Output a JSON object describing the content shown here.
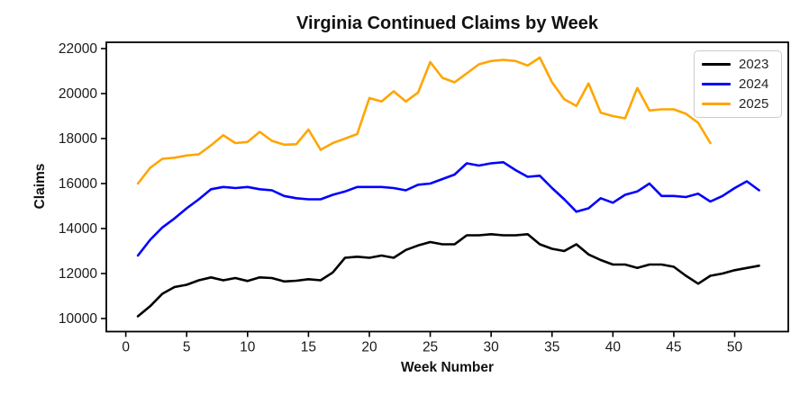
{
  "chart_data": {
    "type": "line",
    "title": "Virginia Continued Claims by Week",
    "xlabel": "Week Number",
    "ylabel": "Claims",
    "grid": false,
    "legend_position": "upper right",
    "xlim": [
      -1.6,
      54.4
    ],
    "ylim": [
      9420,
      22280
    ],
    "xticks": [
      0,
      5,
      10,
      15,
      20,
      25,
      30,
      35,
      40,
      45,
      50
    ],
    "yticks": [
      10000,
      12000,
      14000,
      16000,
      18000,
      20000,
      22000
    ],
    "x_unit": "week_number_starting_at_1",
    "text_color": "#1a1a1a",
    "spine_color": "#000000",
    "series": [
      {
        "name": "2023",
        "color": "#000000",
        "values": [
          10100,
          10550,
          11100,
          11400,
          11500,
          11700,
          11830,
          11700,
          11800,
          11670,
          11830,
          11800,
          11650,
          11680,
          11750,
          11700,
          12050,
          12700,
          12750,
          12700,
          12800,
          12700,
          13050,
          13250,
          13400,
          13300,
          13300,
          13700,
          13700,
          13750,
          13700,
          13700,
          13750,
          13300,
          13100,
          13000,
          13300,
          12850,
          12600,
          12400,
          12400,
          12250,
          12400,
          12400,
          12300,
          11900,
          11550,
          11900,
          12000,
          12150,
          12250,
          12350
        ]
      },
      {
        "name": "2024",
        "color": "#0000ff",
        "values": [
          12800,
          13500,
          14050,
          14450,
          14900,
          15300,
          15750,
          15850,
          15800,
          15850,
          15750,
          15700,
          15450,
          15350,
          15300,
          15300,
          15500,
          15650,
          15850,
          15850,
          15850,
          15800,
          15700,
          15950,
          16000,
          16200,
          16400,
          16900,
          16800,
          16900,
          16950,
          16600,
          16300,
          16350,
          15800,
          15300,
          14750,
          14900,
          15350,
          15150,
          15500,
          15650,
          16000,
          15450,
          15450,
          15400,
          15550,
          15200,
          15450,
          15800,
          16100,
          15700
        ]
      },
      {
        "name": "2025",
        "color": "#ffa500",
        "values": [
          16000,
          16700,
          17100,
          17150,
          17250,
          17300,
          17700,
          18150,
          17800,
          17850,
          18300,
          17900,
          17730,
          17750,
          18400,
          17500,
          17800,
          18000,
          18200,
          19800,
          19650,
          20100,
          19650,
          20050,
          21400,
          20700,
          20500,
          20900,
          21300,
          21450,
          21500,
          21450,
          21250,
          21600,
          20500,
          19750,
          19450,
          20450,
          19150,
          19000,
          18900,
          20250,
          19250,
          19300,
          19300,
          19100,
          18700,
          17800
        ]
      }
    ]
  }
}
